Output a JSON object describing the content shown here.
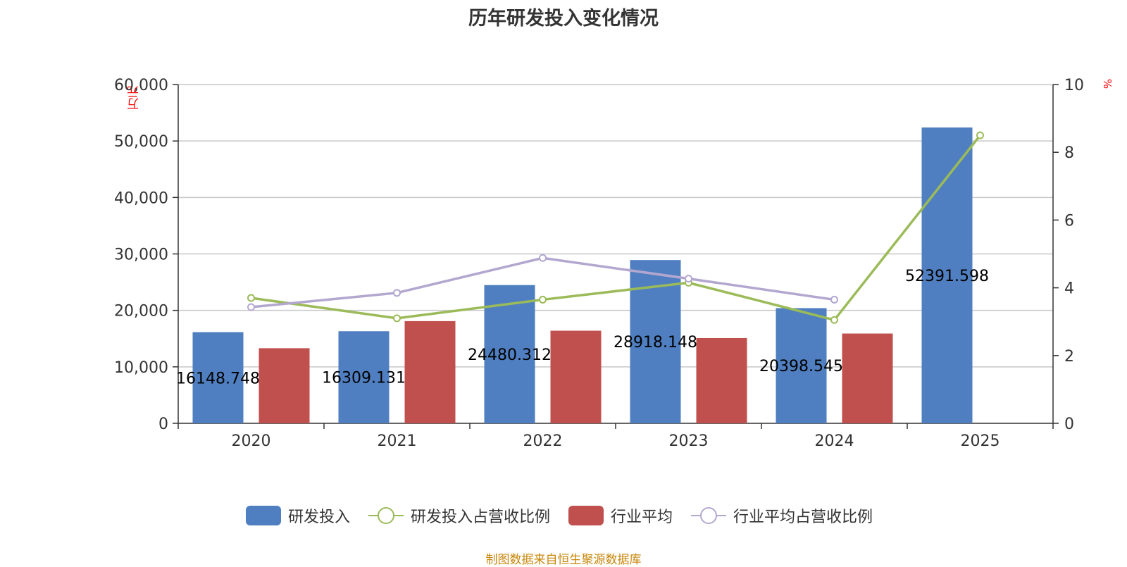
{
  "chart_data": {
    "type": "bar",
    "title": "历年研发投入变化情况",
    "categories": [
      "2020",
      "2021",
      "2022",
      "2023",
      "2024",
      "2025"
    ],
    "y_left": {
      "unit": "万元",
      "ylim": [
        0,
        60000
      ],
      "ticks": [
        "0",
        "10,000",
        "20,000",
        "30,000",
        "40,000",
        "50,000",
        "60,000"
      ],
      "tick_values": [
        0,
        10000,
        20000,
        30000,
        40000,
        50000,
        60000
      ]
    },
    "y_right": {
      "unit": "%",
      "ylim": [
        0,
        10
      ],
      "ticks": [
        "0",
        "2",
        "4",
        "6",
        "8",
        "10"
      ],
      "tick_values": [
        0,
        2,
        4,
        6,
        8,
        10
      ]
    },
    "series": [
      {
        "name": "研发投入",
        "kind": "bar",
        "axis": "left",
        "color": "#4f7fc0",
        "values": [
          16148.748,
          16309.131,
          24480.312,
          28918.148,
          20398.545,
          52391.598
        ],
        "labels": [
          "16148.748",
          "16309.131",
          "24480.312",
          "28918.148",
          "20398.545",
          "52391.598"
        ]
      },
      {
        "name": "行业平均",
        "kind": "bar",
        "axis": "left",
        "color": "#c0504d",
        "values": [
          13300,
          18100,
          16400,
          15100,
          15900,
          null
        ]
      },
      {
        "name": "研发投入占营收比例",
        "kind": "line",
        "axis": "right",
        "color": "#9bbb59",
        "values": [
          3.7,
          3.1,
          3.65,
          4.15,
          3.05,
          8.5
        ]
      },
      {
        "name": "行业平均占营收比例",
        "kind": "line",
        "axis": "right",
        "color": "#b3a7d0",
        "values": [
          3.43,
          3.85,
          4.88,
          4.27,
          3.65,
          null
        ]
      }
    ],
    "grid": true,
    "legend_position": "bottom"
  },
  "footer": {
    "source": "制图数据来自恒生聚源数据库"
  }
}
